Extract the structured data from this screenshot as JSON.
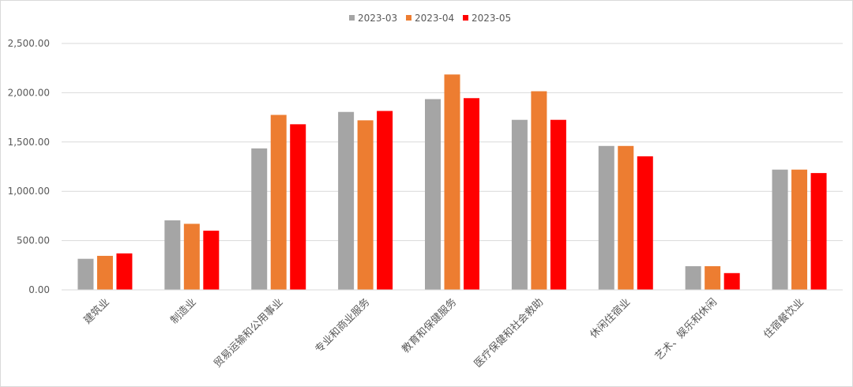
{
  "chart_data": {
    "type": "bar",
    "title": "",
    "xlabel": "",
    "ylabel": "",
    "ylim": [
      0,
      2500
    ],
    "y_ticks": [
      "0.00",
      "500.00",
      "1,000.00",
      "1,500.00",
      "2,000.00",
      "2,500.00"
    ],
    "grid": true,
    "legend_position": "top-center",
    "categories": [
      "建筑业",
      "制造业",
      "贸易运输和公用事业",
      "专业和商业服务",
      "教育和保健服务",
      "医疗保健和社会救助",
      "休闲住宿业",
      "艺术、娱乐和休闲",
      "住宿餐饮业"
    ],
    "series": [
      {
        "name": "2023-03",
        "color": "#a5a5a5",
        "values": [
          315,
          705,
          1435,
          1805,
          1935,
          1725,
          1460,
          240,
          1220
        ]
      },
      {
        "name": "2023-04",
        "color": "#ed7d31",
        "values": [
          345,
          670,
          1775,
          1720,
          2185,
          2015,
          1460,
          240,
          1220
        ]
      },
      {
        "name": "2023-05",
        "color": "#ff0000",
        "values": [
          370,
          600,
          1680,
          1815,
          1945,
          1725,
          1355,
          170,
          1185
        ]
      }
    ]
  }
}
